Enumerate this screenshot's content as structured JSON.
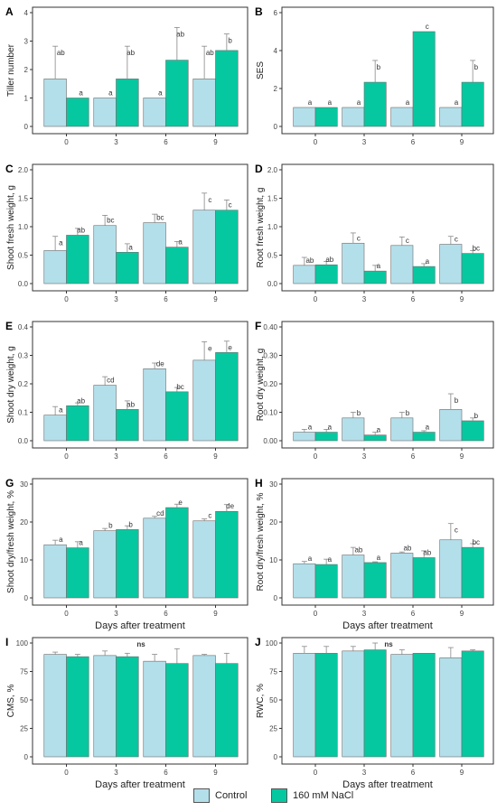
{
  "colors": {
    "control": "#B3DFEA",
    "nacl": "#06C8A0",
    "axis": "#333333",
    "errorbar": "#888888",
    "text": "#222222"
  },
  "legend": {
    "items": [
      {
        "label": "Control",
        "color": "#B3DFEA"
      },
      {
        "label": "160 mM NaCl",
        "color": "#06C8A0"
      }
    ]
  },
  "chart_data": [
    {
      "panel": "A",
      "type": "bar",
      "ylabel": "Tiller number",
      "xlabel": "",
      "categories": [
        "0",
        "3",
        "6",
        "9"
      ],
      "ylim": [
        0,
        4
      ],
      "yticks": [
        0,
        1,
        2,
        3,
        4
      ],
      "yticklabels": [
        "0",
        "1",
        "2",
        "3",
        "4"
      ],
      "grid": false,
      "series": [
        {
          "name": "Control",
          "values": [
            1.67,
            1.0,
            1.0,
            1.67
          ],
          "err": [
            1.15,
            0,
            0,
            1.15
          ],
          "labels": [
            "ab",
            "a",
            "a",
            "ab"
          ]
        },
        {
          "name": "160 mM NaCl",
          "values": [
            1.0,
            1.67,
            2.33,
            2.67
          ],
          "err": [
            0,
            1.15,
            1.15,
            0.58
          ],
          "labels": [
            "a",
            "ab",
            "ab",
            "b"
          ]
        }
      ]
    },
    {
      "panel": "B",
      "type": "bar",
      "ylabel": "SES",
      "xlabel": "",
      "categories": [
        "0",
        "3",
        "6",
        "9"
      ],
      "ylim": [
        0,
        6
      ],
      "yticks": [
        0,
        2,
        4,
        6
      ],
      "yticklabels": [
        "0",
        "2",
        "4",
        "6"
      ],
      "grid": false,
      "series": [
        {
          "name": "Control",
          "values": [
            1,
            1,
            1,
            1
          ],
          "err": [
            0,
            0,
            0,
            0
          ],
          "labels": [
            "a",
            "a",
            "a",
            "a"
          ]
        },
        {
          "name": "160 mM NaCl",
          "values": [
            1,
            2.33,
            5,
            2.33
          ],
          "err": [
            0,
            1.15,
            0,
            1.15
          ],
          "labels": [
            "a",
            "b",
            "c",
            "b"
          ]
        }
      ]
    },
    {
      "panel": "C",
      "type": "bar",
      "ylabel": "Shoot fresh weight, g",
      "xlabel": "",
      "categories": [
        "0",
        "3",
        "6",
        "9"
      ],
      "ylim": [
        0,
        2.0
      ],
      "yticks": [
        0,
        0.5,
        1.0,
        1.5,
        2.0
      ],
      "yticklabels": [
        "0.0",
        "0.5",
        "1.0",
        "1.5",
        "2.0"
      ],
      "grid": false,
      "series": [
        {
          "name": "Control",
          "values": [
            0.58,
            1.02,
            1.07,
            1.29
          ],
          "err": [
            0.25,
            0.18,
            0.15,
            0.3
          ],
          "labels": [
            "a",
            "bc",
            "bc",
            "c"
          ]
        },
        {
          "name": "160 mM NaCl",
          "values": [
            0.85,
            0.55,
            0.64,
            1.29
          ],
          "err": [
            0.12,
            0.15,
            0.1,
            0.18
          ],
          "labels": [
            "ab",
            "a",
            "a",
            "c"
          ]
        }
      ]
    },
    {
      "panel": "D",
      "type": "bar",
      "ylabel": "Root fresh weight, g",
      "xlabel": "",
      "categories": [
        "0",
        "3",
        "6",
        "9"
      ],
      "ylim": [
        0,
        2.0
      ],
      "yticks": [
        0,
        0.5,
        1.0,
        1.5,
        2.0
      ],
      "yticklabels": [
        "0.0",
        "0.5",
        "1.0",
        "1.5",
        "2.0"
      ],
      "grid": false,
      "series": [
        {
          "name": "Control",
          "values": [
            0.32,
            0.71,
            0.67,
            0.69
          ],
          "err": [
            0.14,
            0.18,
            0.15,
            0.14
          ],
          "labels": [
            "ab",
            "c",
            "c",
            "c"
          ]
        },
        {
          "name": "160 mM NaCl",
          "values": [
            0.33,
            0.22,
            0.3,
            0.53
          ],
          "err": [
            0.06,
            0.1,
            0.05,
            0.05
          ],
          "labels": [
            "ab",
            "a",
            "a",
            "bc"
          ]
        }
      ]
    },
    {
      "panel": "E",
      "type": "bar",
      "ylabel": "Shoot dry weight, g",
      "xlabel": "",
      "categories": [
        "0",
        "3",
        "6",
        "9"
      ],
      "ylim": [
        0,
        0.4
      ],
      "yticks": [
        0,
        0.1,
        0.2,
        0.3,
        0.4
      ],
      "yticklabels": [
        "0.0",
        "0.1",
        "0.2",
        "0.3",
        "0.4"
      ],
      "grid": false,
      "series": [
        {
          "name": "Control",
          "values": [
            0.09,
            0.195,
            0.253,
            0.283
          ],
          "err": [
            0.03,
            0.03,
            0.02,
            0.065
          ],
          "labels": [
            "a",
            "cd",
            "de",
            "e"
          ]
        },
        {
          "name": "160 mM NaCl",
          "values": [
            0.123,
            0.11,
            0.172,
            0.31
          ],
          "err": [
            0.01,
            0.03,
            0.015,
            0.04
          ],
          "labels": [
            "ab",
            "ab",
            "bc",
            "e"
          ]
        }
      ]
    },
    {
      "panel": "F",
      "type": "bar",
      "ylabel": "Root dry weight, g",
      "xlabel": "",
      "categories": [
        "0",
        "3",
        "6",
        "9"
      ],
      "ylim": [
        0,
        0.4
      ],
      "yticks": [
        0,
        0.1,
        0.2,
        0.3,
        0.4
      ],
      "yticklabels": [
        "0.00",
        "0.10",
        "0.20",
        "0.30",
        "0.40"
      ],
      "grid": false,
      "series": [
        {
          "name": "Control",
          "values": [
            0.03,
            0.08,
            0.08,
            0.11
          ],
          "err": [
            0.01,
            0.02,
            0.02,
            0.055
          ],
          "labels": [
            "a",
            "b",
            "b",
            "b"
          ]
        },
        {
          "name": "160 mM NaCl",
          "values": [
            0.03,
            0.02,
            0.03,
            0.07
          ],
          "err": [
            0.01,
            0.01,
            0.005,
            0.01
          ],
          "labels": [
            "a",
            "a",
            "a",
            "b"
          ]
        }
      ]
    },
    {
      "panel": "G",
      "type": "bar",
      "ylabel": "Shoot dry/fresh weight, %",
      "xlabel": "Days after treatment",
      "categories": [
        "0",
        "3",
        "6",
        "9"
      ],
      "ylim": [
        0,
        30
      ],
      "yticks": [
        0,
        10,
        20,
        30
      ],
      "yticklabels": [
        "0",
        "10",
        "20",
        "30"
      ],
      "grid": false,
      "series": [
        {
          "name": "Control",
          "values": [
            14.0,
            17.7,
            21.0,
            20.3
          ],
          "err": [
            1.2,
            0.6,
            0.5,
            0.5
          ],
          "labels": [
            "a",
            "b",
            "cd",
            "c"
          ]
        },
        {
          "name": "160 mM NaCl",
          "values": [
            13.2,
            18.0,
            23.8,
            22.8
          ],
          "err": [
            1.6,
            1.0,
            0.9,
            1.8
          ],
          "labels": [
            "a",
            "b",
            "e",
            "de"
          ]
        }
      ]
    },
    {
      "panel": "H",
      "type": "bar",
      "ylabel": "Root dry/fresh weight, %",
      "xlabel": "Days after treatment",
      "categories": [
        "0",
        "3",
        "6",
        "9"
      ],
      "ylim": [
        0,
        30
      ],
      "yticks": [
        0,
        10,
        20,
        30
      ],
      "yticklabels": [
        "0",
        "10",
        "20",
        "30"
      ],
      "grid": false,
      "series": [
        {
          "name": "Control",
          "values": [
            9.0,
            11.3,
            11.8,
            15.3
          ],
          "err": [
            0.6,
            2.0,
            0.3,
            4.3
          ],
          "labels": [
            "a",
            "ab",
            "ab",
            "c"
          ]
        },
        {
          "name": "160 mM NaCl",
          "values": [
            8.8,
            9.3,
            10.6,
            13.3
          ],
          "err": [
            1.4,
            0.2,
            1.8,
            1.0
          ],
          "labels": [
            "a",
            "a",
            "ab",
            "bc"
          ]
        }
      ]
    },
    {
      "panel": "I",
      "type": "bar",
      "ylabel": "CMS, %",
      "xlabel": "Days after treatment",
      "categories": [
        "0",
        "3",
        "6",
        "9"
      ],
      "ylim": [
        0,
        100
      ],
      "yticks": [
        0,
        25,
        50,
        75,
        100
      ],
      "yticklabels": [
        "0",
        "25",
        "50",
        "75",
        "100"
      ],
      "grid": false,
      "annotation": "ns",
      "series": [
        {
          "name": "Control",
          "values": [
            90,
            89,
            84,
            89
          ],
          "err": [
            2,
            4,
            6,
            1
          ],
          "labels": [
            "",
            "",
            "",
            ""
          ]
        },
        {
          "name": "160 mM NaCl",
          "values": [
            88,
            88,
            82,
            82
          ],
          "err": [
            2,
            3,
            13,
            9
          ],
          "labels": [
            "",
            "",
            "",
            ""
          ]
        }
      ]
    },
    {
      "panel": "J",
      "type": "bar",
      "ylabel": "RWC, %",
      "xlabel": "Days after treatment",
      "categories": [
        "0",
        "3",
        "6",
        "9"
      ],
      "ylim": [
        0,
        100
      ],
      "yticks": [
        0,
        25,
        50,
        75,
        100
      ],
      "yticklabels": [
        "0",
        "25",
        "50",
        "75",
        "100"
      ],
      "grid": false,
      "annotation": "ns",
      "series": [
        {
          "name": "Control",
          "values": [
            91,
            93,
            90,
            87
          ],
          "err": [
            6,
            4,
            4,
            9
          ],
          "labels": [
            "",
            "",
            "",
            ""
          ]
        },
        {
          "name": "160 mM NaCl",
          "values": [
            91,
            94,
            91,
            93
          ],
          "err": [
            6,
            6,
            0,
            1
          ],
          "labels": [
            "",
            "",
            "",
            ""
          ]
        }
      ]
    }
  ]
}
